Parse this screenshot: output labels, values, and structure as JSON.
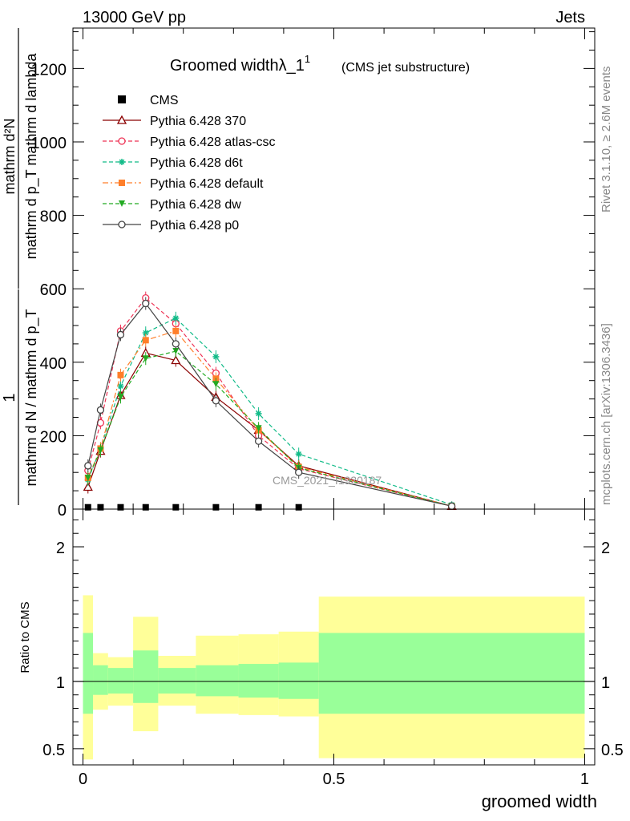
{
  "header": {
    "left": "13000 GeV pp",
    "right": "Jets"
  },
  "side_text": {
    "rivet": "Rivet 3.1.10, ≥ 2.6M events",
    "mcplots": "mcplots.cern.ch [arXiv:1306.3436]"
  },
  "watermark": "CMS_2021_I1920187",
  "chart_data": [
    {
      "type": "line",
      "title": "Groomed widthλ_1",
      "title_sup": "1",
      "subtitle": "(CMS jet substructure)",
      "ylabel_numerator": "mathrm d²N",
      "ylabel_denominator": "mathrm d p_T mathrm d lambda",
      "ylabel_prefix": "1",
      "ylabel_prefix_den": "mathrm d N / mathrm d p_T",
      "xlim": [
        -0.02,
        1.02
      ],
      "ylim": [
        0,
        1310
      ],
      "yticks": [
        0,
        200,
        400,
        600,
        800,
        1000,
        1200
      ],
      "yticklabels": [
        "0",
        "200",
        "400",
        "600",
        "800",
        "1000",
        "1200"
      ],
      "grid": false,
      "legend_position": "top-left",
      "series": [
        {
          "name": "CMS",
          "color": "#000000",
          "marker": "square",
          "line": "none",
          "x": [
            0.01,
            0.035,
            0.075,
            0.125,
            0.185,
            0.265,
            0.35,
            0.43
          ],
          "y": [
            5,
            5,
            5,
            5,
            5,
            5,
            5,
            5
          ]
        },
        {
          "name": "Pythia 6.428 370",
          "color": "#8b0000",
          "marker": "triangle-open",
          "dash": "solid",
          "x": [
            0.01,
            0.035,
            0.075,
            0.125,
            0.185,
            0.265,
            0.35,
            0.43,
            0.735
          ],
          "y": [
            60,
            158,
            310,
            425,
            405,
            305,
            215,
            118,
            8
          ]
        },
        {
          "name": "Pythia 6.428 atlas-csc",
          "color": "#ee3355",
          "marker": "circle-open",
          "dash": "dashed",
          "x": [
            0.01,
            0.035,
            0.075,
            0.125,
            0.185,
            0.265,
            0.35,
            0.43,
            0.735
          ],
          "y": [
            105,
            235,
            485,
            575,
            505,
            370,
            200,
            110,
            8
          ]
        },
        {
          "name": "Pythia 6.428 d6t",
          "color": "#11bb88",
          "marker": "star",
          "dash": "dashed",
          "x": [
            0.01,
            0.035,
            0.075,
            0.125,
            0.185,
            0.265,
            0.35,
            0.43,
            0.735
          ],
          "y": [
            80,
            165,
            335,
            480,
            520,
            415,
            260,
            150,
            12
          ]
        },
        {
          "name": "Pythia 6.428 default",
          "color": "#ff7f2a",
          "marker": "square",
          "dash": "dashdot",
          "x": [
            0.01,
            0.035,
            0.075,
            0.125,
            0.185,
            0.265,
            0.35,
            0.43,
            0.735
          ],
          "y": [
            85,
            165,
            365,
            460,
            485,
            355,
            215,
            115,
            8
          ]
        },
        {
          "name": "Pythia 6.428 dw",
          "color": "#22aa22",
          "marker": "triangle-down",
          "dash": "dashed",
          "x": [
            0.01,
            0.035,
            0.075,
            0.125,
            0.185,
            0.265,
            0.35,
            0.43,
            0.735
          ],
          "y": [
            85,
            160,
            305,
            410,
            430,
            340,
            220,
            112,
            8
          ]
        },
        {
          "name": "Pythia 6.428 p0",
          "color": "#444444",
          "marker": "circle-open",
          "dash": "solid",
          "x": [
            0.01,
            0.035,
            0.075,
            0.125,
            0.185,
            0.265,
            0.35,
            0.43,
            0.735
          ],
          "y": [
            118,
            270,
            475,
            560,
            450,
            295,
            185,
            100,
            8
          ]
        }
      ]
    },
    {
      "type": "area",
      "ylabel": "Ratio to CMS",
      "xlabel": "groomed width",
      "xlim": [
        -0.02,
        1.02
      ],
      "ylim": [
        0.38,
        2.28
      ],
      "yticks": [
        0.5,
        1,
        2
      ],
      "yticklabels": [
        "0.5",
        "1",
        "2"
      ],
      "xticks": [
        0,
        0.5,
        1
      ],
      "xticklabels": [
        "0",
        "0.5",
        "1"
      ],
      "bands": [
        {
          "x0": 0.0,
          "x1": 0.02,
          "yellow": [
            0.42,
            1.64
          ],
          "green": [
            0.76,
            1.36
          ]
        },
        {
          "x0": 0.02,
          "x1": 0.05,
          "yellow": [
            0.79,
            1.21
          ],
          "green": [
            0.9,
            1.12
          ]
        },
        {
          "x0": 0.05,
          "x1": 0.1,
          "yellow": [
            0.82,
            1.18
          ],
          "green": [
            0.91,
            1.1
          ]
        },
        {
          "x0": 0.1,
          "x1": 0.15,
          "yellow": [
            0.63,
            1.48
          ],
          "green": [
            0.84,
            1.23
          ]
        },
        {
          "x0": 0.15,
          "x1": 0.225,
          "yellow": [
            0.82,
            1.19
          ],
          "green": [
            0.91,
            1.1
          ]
        },
        {
          "x0": 0.225,
          "x1": 0.31,
          "yellow": [
            0.76,
            1.34
          ],
          "green": [
            0.89,
            1.12
          ]
        },
        {
          "x0": 0.31,
          "x1": 0.39,
          "yellow": [
            0.75,
            1.35
          ],
          "green": [
            0.88,
            1.13
          ]
        },
        {
          "x0": 0.39,
          "x1": 0.47,
          "yellow": [
            0.74,
            1.37
          ],
          "green": [
            0.87,
            1.14
          ]
        },
        {
          "x0": 0.47,
          "x1": 1.0,
          "yellow": [
            0.43,
            1.63
          ],
          "green": [
            0.76,
            1.36
          ]
        }
      ]
    }
  ]
}
